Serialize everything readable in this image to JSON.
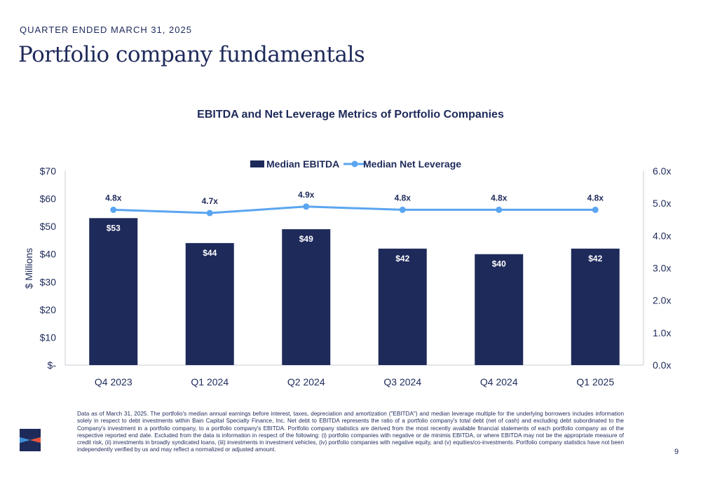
{
  "header": {
    "eyebrow": "QUARTER ENDED MARCH 31, 2025",
    "title": "Portfolio company fundamentals"
  },
  "chart_data": {
    "type": "bar",
    "title": "EBITDA and Net Leverage Metrics of Portfolio Companies",
    "categories": [
      "Q4 2023",
      "Q1 2024",
      "Q2 2024",
      "Q3 2024",
      "Q4 2024",
      "Q1 2025"
    ],
    "series": [
      {
        "name": "Median EBITDA",
        "type": "bar",
        "axis": "left",
        "values": [
          53,
          44,
          49,
          42,
          40,
          42
        ],
        "labels": [
          "$53",
          "$44",
          "$49",
          "$42",
          "$40",
          "$42"
        ],
        "color": "#1e2a5a"
      },
      {
        "name": "Median Net Leverage",
        "type": "line",
        "axis": "right",
        "values": [
          4.8,
          4.7,
          4.9,
          4.8,
          4.8,
          4.8
        ],
        "labels": [
          "4.8x",
          "4.7x",
          "4.9x",
          "4.8x",
          "4.8x",
          "4.8x"
        ],
        "color": "#5aa5f0"
      }
    ],
    "ylabel": "$ Millions",
    "ylim": [
      0,
      70
    ],
    "yticks": [
      "$-",
      "$10",
      "$20",
      "$30",
      "$40",
      "$50",
      "$60",
      "$70"
    ],
    "y2lim": [
      0,
      6
    ],
    "y2ticks": [
      "0.0x",
      "1.0x",
      "2.0x",
      "3.0x",
      "4.0x",
      "5.0x",
      "6.0x"
    ],
    "legend_position": "top-center",
    "grid": false
  },
  "footnote": "Data as of March 31, 2025. The portfolio's median annual earnings before interest, taxes, depreciation and amortization (\"EBITDA\") and median leverage multiple for the underlying borrowers includes information solely in respect to debt investments within Bain Capital Specialty Finance, Inc. Net debt to EBITDA represents the ratio of a portfolio company's total debt (net of cash) and excluding debt subordinated to the Company's investment in a portfolio company, to a portfolio company's EBITDA. Portfolio company statistics are derived from the most recently available financial statements of each portfolio company as of the respective reported end date. Excluded from the data is information in respect of the following: (i) portfolio companies with negative or de minimis EBITDA, or where EBITDA may not be the appropriate measure of credit risk, (ii) investments in broadly syndicated loans, (iii) investments in investment vehicles, (iv) portfolio companies with negative equity, and (v) equities/co-investments. Portfolio company statistics have not been independently verified by us and may reflect a normalized or adjusted amount.",
  "page_number": "9",
  "colors": {
    "navy": "#1e2a5a",
    "light_blue": "#5aa5f0",
    "logo_blue": "#3b8fd9",
    "logo_red": "#e8513a",
    "axis": "#c9ccd6"
  },
  "logo": {
    "icon": "company-logo-icon"
  }
}
